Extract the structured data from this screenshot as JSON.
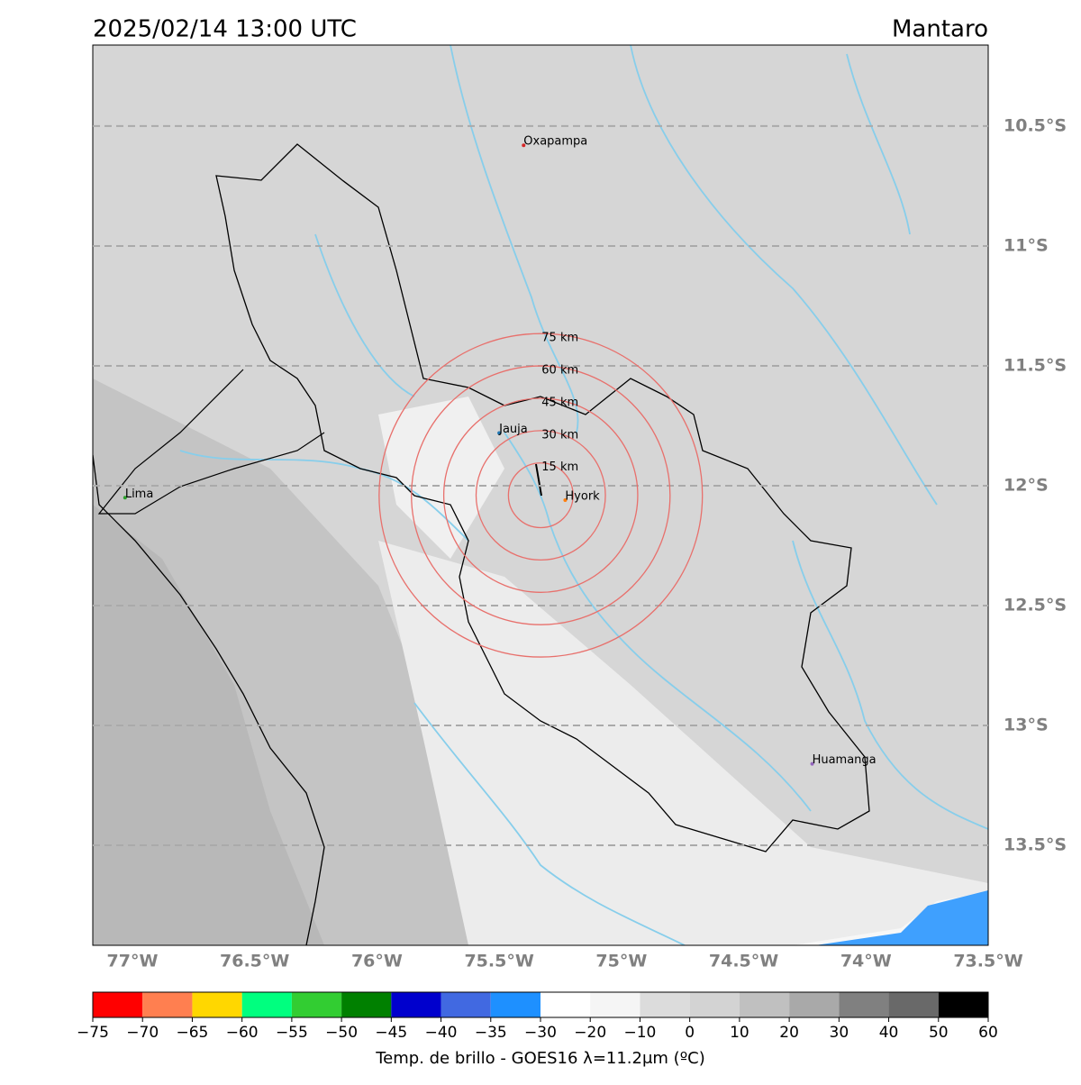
{
  "title_left": "2025/02/14 13:00 UTC",
  "title_right": "Mantaro",
  "map": {
    "xlim": [
      -77.162,
      -73.5
    ],
    "ylim": [
      -13.917,
      -10.162
    ],
    "xticks": [
      {
        "value": -77,
        "label": "77°W"
      },
      {
        "value": -76.5,
        "label": "76.5°W"
      },
      {
        "value": -76,
        "label": "76°W"
      },
      {
        "value": -75.5,
        "label": "75.5°W"
      },
      {
        "value": -75,
        "label": "75°W"
      },
      {
        "value": -74.5,
        "label": "74.5°W"
      },
      {
        "value": -74,
        "label": "74°W"
      },
      {
        "value": -73.5,
        "label": "73.5°W"
      }
    ],
    "yticks": [
      {
        "value": -10.5,
        "label": "10.5°S"
      },
      {
        "value": -11,
        "label": "11°S"
      },
      {
        "value": -11.5,
        "label": "11.5°S"
      },
      {
        "value": -12,
        "label": "12°S"
      },
      {
        "value": -12.5,
        "label": "12.5°S"
      },
      {
        "value": -13,
        "label": "13°S"
      },
      {
        "value": -13.5,
        "label": "13.5°S"
      }
    ],
    "grid": true,
    "cities": [
      {
        "name": "Oxapampa",
        "lon": -75.4,
        "lat": -10.58,
        "color": "#d62728"
      },
      {
        "name": "Lima",
        "lon": -77.03,
        "lat": -12.05,
        "color": "#2ca02c"
      },
      {
        "name": "Jauja",
        "lon": -75.5,
        "lat": -11.78,
        "color": "#1f77b4"
      },
      {
        "name": "Hyork",
        "lon": -75.23,
        "lat": -12.06,
        "color": "#ff7f0e"
      },
      {
        "name": "Huamanga",
        "lon": -74.22,
        "lat": -13.16,
        "color": "#9467bd"
      }
    ],
    "rings": {
      "center": [
        -75.33,
        -12.04
      ],
      "color": "#e8706c",
      "radii": [
        {
          "value": 15,
          "label": "15 km"
        },
        {
          "value": 30,
          "label": "30 km"
        },
        {
          "value": 45,
          "label": "45 km"
        },
        {
          "value": 60,
          "label": "60 km"
        },
        {
          "value": 75,
          "label": "75 km"
        }
      ]
    }
  },
  "colorbar": {
    "label": "Temp. de brillo - GOES16 λ=11.2μm (ºC)",
    "ticks": [
      {
        "value": -75,
        "label": "−75"
      },
      {
        "value": -70,
        "label": "−70"
      },
      {
        "value": -65,
        "label": "−65"
      },
      {
        "value": -60,
        "label": "−60"
      },
      {
        "value": -55,
        "label": "−55"
      },
      {
        "value": -50,
        "label": "−50"
      },
      {
        "value": -45,
        "label": "−45"
      },
      {
        "value": -40,
        "label": "−40"
      },
      {
        "value": -35,
        "label": "−35"
      },
      {
        "value": -30,
        "label": "−30"
      },
      {
        "value": -20,
        "label": "−20"
      },
      {
        "value": -10,
        "label": "−10"
      },
      0,
      10,
      20,
      30,
      40,
      50,
      60
    ],
    "colors": [
      "#ff0000",
      "#ff7f50",
      "#ffd700",
      "#00ff7f",
      "#32cd32",
      "#008000",
      "#0000cd",
      "#4169e1",
      "#1e90ff",
      "#ffffff",
      "#f5f5f5",
      "#dcdcdc",
      "#d3d3d3",
      "#c0c0c0",
      "#a9a9a9",
      "#808080",
      "#696969",
      "#000000"
    ]
  }
}
